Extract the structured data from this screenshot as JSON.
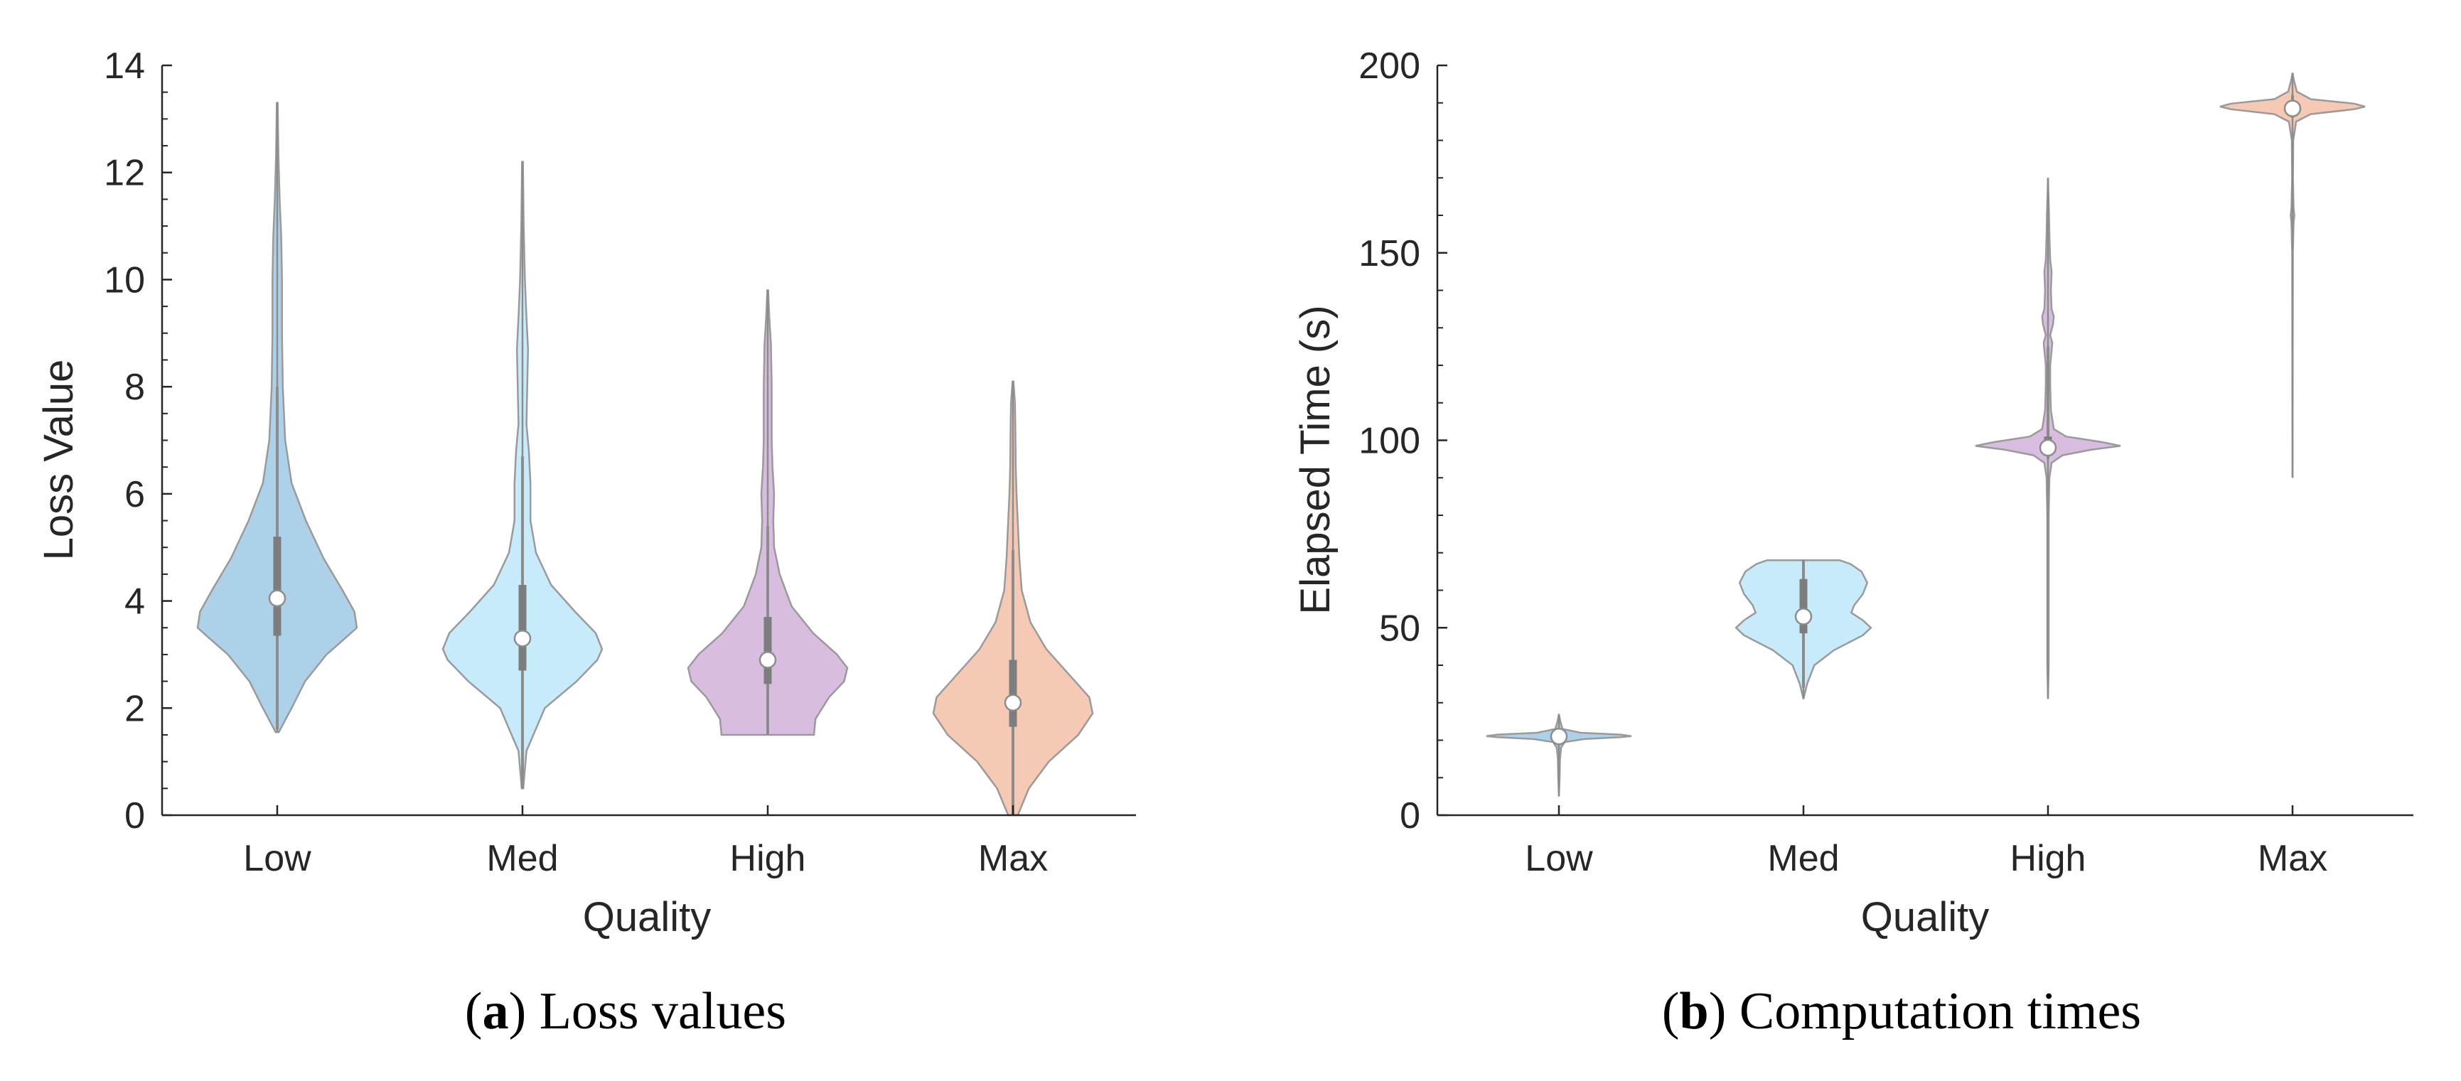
{
  "chart_data": [
    {
      "type": "violin",
      "xlabel": "Quality",
      "ylabel": "Loss Value",
      "ylim": [
        0,
        14
      ],
      "yticks": [
        0,
        2,
        4,
        6,
        8,
        10,
        12,
        14
      ],
      "categories": [
        "Low",
        "Med",
        "High",
        "Max"
      ],
      "caption_letter": "a",
      "caption_text": "Loss values",
      "colors": [
        "#aed1ea",
        "#c8ebfb",
        "#d8bde0",
        "#f6c9b4"
      ],
      "series": [
        {
          "category": "Low",
          "min": 1.55,
          "max": 13.3,
          "median": 4.05,
          "q1": 3.35,
          "q3": 5.2,
          "whisker_low": 1.6,
          "whisker_high": 8.0,
          "profile": [
            [
              1.55,
              0.02
            ],
            [
              2.0,
              0.18
            ],
            [
              2.5,
              0.35
            ],
            [
              3.0,
              0.62
            ],
            [
              3.3,
              0.85
            ],
            [
              3.5,
              1.0
            ],
            [
              3.8,
              0.97
            ],
            [
              4.2,
              0.82
            ],
            [
              4.8,
              0.58
            ],
            [
              5.5,
              0.36
            ],
            [
              6.2,
              0.18
            ],
            [
              7.0,
              0.1
            ],
            [
              8.0,
              0.07
            ],
            [
              9.0,
              0.06
            ],
            [
              10.0,
              0.06
            ],
            [
              10.8,
              0.05
            ],
            [
              11.5,
              0.03
            ],
            [
              12.3,
              0.015
            ],
            [
              13.3,
              0.005
            ]
          ]
        },
        {
          "category": "Med",
          "min": 0.5,
          "max": 12.2,
          "median": 3.3,
          "q1": 2.7,
          "q3": 4.3,
          "whisker_low": 0.5,
          "whisker_high": 6.7,
          "profile": [
            [
              0.5,
              0.01
            ],
            [
              1.2,
              0.05
            ],
            [
              2.0,
              0.28
            ],
            [
              2.5,
              0.68
            ],
            [
              2.9,
              0.94
            ],
            [
              3.1,
              1.0
            ],
            [
              3.4,
              0.92
            ],
            [
              3.8,
              0.66
            ],
            [
              4.3,
              0.36
            ],
            [
              4.9,
              0.17
            ],
            [
              5.5,
              0.1
            ],
            [
              6.2,
              0.1
            ],
            [
              6.8,
              0.08
            ],
            [
              7.3,
              0.05
            ],
            [
              8.0,
              0.06
            ],
            [
              8.7,
              0.07
            ],
            [
              9.3,
              0.05
            ],
            [
              10.0,
              0.03
            ],
            [
              11.0,
              0.015
            ],
            [
              12.2,
              0.005
            ]
          ]
        },
        {
          "category": "High",
          "min": 1.5,
          "max": 9.8,
          "median": 2.9,
          "q1": 2.45,
          "q3": 3.7,
          "whisker_low": 1.5,
          "whisker_high": 5.4,
          "profile": [
            [
              1.5,
              0.58
            ],
            [
              1.8,
              0.6
            ],
            [
              2.2,
              0.77
            ],
            [
              2.5,
              0.96
            ],
            [
              2.75,
              1.0
            ],
            [
              3.0,
              0.87
            ],
            [
              3.4,
              0.57
            ],
            [
              3.9,
              0.3
            ],
            [
              4.5,
              0.15
            ],
            [
              5.0,
              0.08
            ],
            [
              5.5,
              0.07
            ],
            [
              6.0,
              0.08
            ],
            [
              6.5,
              0.06
            ],
            [
              7.0,
              0.05
            ],
            [
              8.0,
              0.05
            ],
            [
              8.8,
              0.04
            ],
            [
              9.3,
              0.02
            ],
            [
              9.8,
              0.005
            ]
          ]
        },
        {
          "category": "Max",
          "min": 0.0,
          "max": 8.1,
          "median": 2.1,
          "q1": 1.65,
          "q3": 2.9,
          "whisker_low": 0.0,
          "whisker_high": 4.95,
          "profile": [
            [
              0.0,
              0.06
            ],
            [
              0.5,
              0.2
            ],
            [
              1.0,
              0.45
            ],
            [
              1.5,
              0.82
            ],
            [
              1.9,
              1.0
            ],
            [
              2.2,
              0.96
            ],
            [
              2.6,
              0.72
            ],
            [
              3.1,
              0.42
            ],
            [
              3.6,
              0.22
            ],
            [
              4.2,
              0.11
            ],
            [
              4.8,
              0.08
            ],
            [
              5.5,
              0.06
            ],
            [
              6.0,
              0.045
            ],
            [
              6.5,
              0.035
            ],
            [
              7.2,
              0.03
            ],
            [
              7.7,
              0.025
            ],
            [
              8.1,
              0.005
            ]
          ]
        }
      ]
    },
    {
      "type": "violin",
      "xlabel": "Quality",
      "ylabel": "Elapsed Time (s)",
      "ylim": [
        0,
        200
      ],
      "yticks": [
        0,
        50,
        100,
        150,
        200
      ],
      "categories": [
        "Low",
        "Med",
        "High",
        "Max"
      ],
      "caption_letter": "b",
      "caption_text": "Computation times",
      "colors": [
        "#aed1ea",
        "#c8ebfb",
        "#d8bde0",
        "#f6c9b4"
      ],
      "series": [
        {
          "category": "Low",
          "min": 5.0,
          "max": 27.0,
          "median": 21.0,
          "q1": 20.7,
          "q3": 21.4,
          "whisker_low": 19.0,
          "whisker_high": 23.0,
          "profile": [
            [
              5,
              0.0
            ],
            [
              10,
              0.01
            ],
            [
              15,
              0.015
            ],
            [
              18,
              0.03
            ],
            [
              19.5,
              0.08
            ],
            [
              20.3,
              0.35
            ],
            [
              20.8,
              0.85
            ],
            [
              21.1,
              1.0
            ],
            [
              21.5,
              0.85
            ],
            [
              22,
              0.3
            ],
            [
              23,
              0.05
            ],
            [
              25,
              0.02
            ],
            [
              27,
              0.0
            ]
          ]
        },
        {
          "category": "Med",
          "min": 31.0,
          "max": 68.0,
          "median": 53.0,
          "q1": 48.5,
          "q3": 63.0,
          "whisker_low": 34.0,
          "whisker_high": 68.0,
          "profile": [
            [
              31,
              0.0
            ],
            [
              35,
              0.05
            ],
            [
              40,
              0.15
            ],
            [
              44,
              0.42
            ],
            [
              48,
              0.82
            ],
            [
              50,
              0.93
            ],
            [
              52,
              0.82
            ],
            [
              54,
              0.66
            ],
            [
              56,
              0.7
            ],
            [
              59,
              0.82
            ],
            [
              62,
              0.88
            ],
            [
              65,
              0.8
            ],
            [
              67,
              0.65
            ],
            [
              68,
              0.5
            ]
          ]
        },
        {
          "category": "High",
          "min": 31.0,
          "max": 170.0,
          "median": 98.0,
          "q1": 96.5,
          "q3": 101.0,
          "whisker_low": 95.0,
          "whisker_high": 125.0,
          "profile": [
            [
              31,
              0.0
            ],
            [
              40,
              0.01
            ],
            [
              60,
              0.01
            ],
            [
              70,
              0.01
            ],
            [
              80,
              0.01
            ],
            [
              90,
              0.02
            ],
            [
              94,
              0.05
            ],
            [
              96,
              0.2
            ],
            [
              97.5,
              0.6
            ],
            [
              98.5,
              1.0
            ],
            [
              99.5,
              0.75
            ],
            [
              101,
              0.25
            ],
            [
              103,
              0.08
            ],
            [
              108,
              0.04
            ],
            [
              115,
              0.03
            ],
            [
              120,
              0.03
            ],
            [
              124,
              0.05
            ],
            [
              126,
              0.06
            ],
            [
              128,
              0.03
            ],
            [
              131,
              0.07
            ],
            [
              133,
              0.08
            ],
            [
              135,
              0.05
            ],
            [
              140,
              0.04
            ],
            [
              145,
              0.05
            ],
            [
              148,
              0.03
            ],
            [
              155,
              0.02
            ],
            [
              160,
              0.015
            ],
            [
              170,
              0.0
            ]
          ]
        },
        {
          "category": "Max",
          "min": 90.0,
          "max": 198.0,
          "median": 188.5,
          "q1": 188.0,
          "q3": 189.5,
          "whisker_low": 186.0,
          "whisker_high": 192.0,
          "profile": [
            [
              90,
              0.0
            ],
            [
              120,
              0.003
            ],
            [
              150,
              0.005
            ],
            [
              158,
              0.015
            ],
            [
              160,
              0.025
            ],
            [
              162,
              0.015
            ],
            [
              170,
              0.006
            ],
            [
              180,
              0.01
            ],
            [
              185,
              0.05
            ],
            [
              187,
              0.25
            ],
            [
              188.3,
              0.85
            ],
            [
              189,
              1.0
            ],
            [
              189.8,
              0.85
            ],
            [
              191,
              0.25
            ],
            [
              193,
              0.06
            ],
            [
              196,
              0.02
            ],
            [
              198,
              0.0
            ]
          ]
        }
      ]
    }
  ]
}
